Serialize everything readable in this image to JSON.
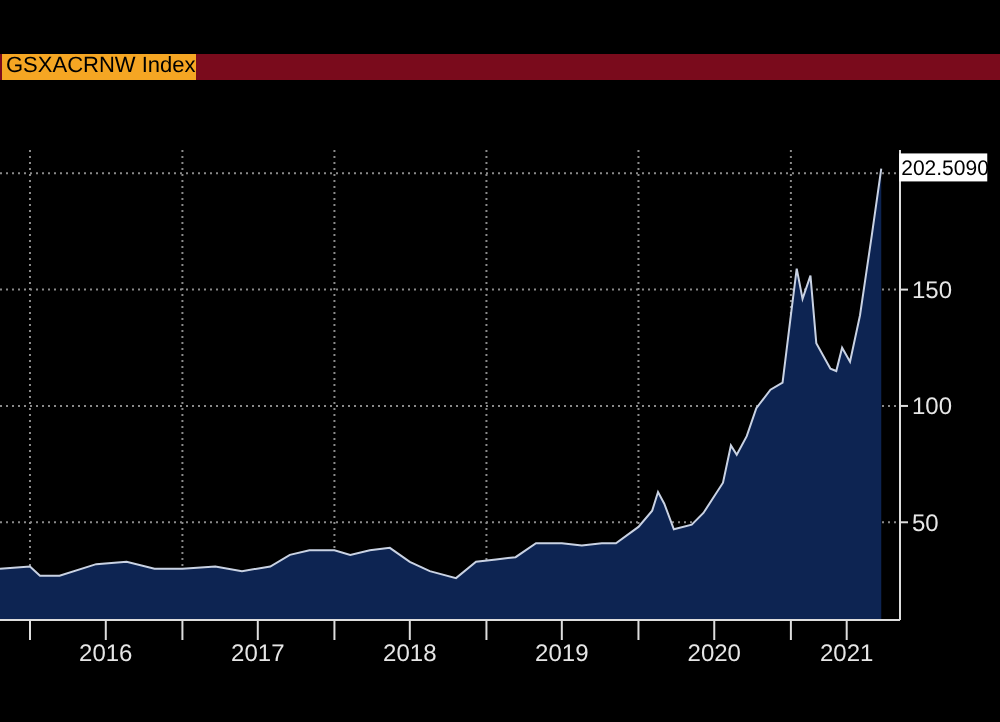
{
  "chart_data": {
    "type": "area",
    "title": "GSXACRNW Index",
    "x": [
      "2015-10-21",
      "2016-01-01",
      "2016-01-25",
      "2016-03-12",
      "2016-06-08",
      "2016-08-20",
      "2016-10-26",
      "2017-01-01",
      "2017-03-21",
      "2017-05-24",
      "2017-07-31",
      "2017-09-16",
      "2017-11-02",
      "2018-01-01",
      "2018-02-08",
      "2018-03-27",
      "2018-05-14",
      "2018-07-01",
      "2018-08-18",
      "2018-10-20",
      "2018-12-07",
      "2019-01-24",
      "2019-03-12",
      "2019-04-30",
      "2019-07-01",
      "2019-08-18",
      "2019-10-05",
      "2019-11-08",
      "2020-01-01",
      "2020-02-03",
      "2020-02-17",
      "2020-03-03",
      "2020-03-26",
      "2020-05-08",
      "2020-06-05",
      "2020-07-22",
      "2020-08-10",
      "2020-08-24",
      "2020-09-17",
      "2020-10-10",
      "2020-11-13",
      "2020-12-12",
      "2021-01-01",
      "2021-01-15",
      "2021-01-29",
      "2021-02-17",
      "2021-03-03",
      "2021-04-06",
      "2021-04-20",
      "2021-05-04",
      "2021-05-23",
      "2021-06-16",
      "2021-06-30",
      "2021-07-14",
      "2021-08-06"
    ],
    "series": [
      {
        "color": "#0d2452",
        "values": [
          30,
          31,
          27,
          27,
          32,
          33,
          30,
          30,
          31,
          29,
          31,
          36,
          38,
          38,
          36,
          38,
          39,
          33,
          29,
          26,
          33,
          34,
          35,
          41,
          41,
          40,
          41,
          41,
          48,
          55,
          63,
          58,
          47,
          49,
          54,
          67,
          83,
          79,
          87,
          99,
          107,
          110,
          139,
          159,
          146,
          156,
          127,
          116,
          115,
          125,
          119,
          139,
          156,
          173,
          202
        ]
      }
    ],
    "xlim": [
      "2015-10-21",
      "2021-09-20"
    ],
    "xticks": [
      {
        "value": "2016-01-01",
        "label": null
      },
      {
        "value": "2016-07-01",
        "label": "2016"
      },
      {
        "value": "2017-01-01",
        "label": null
      },
      {
        "value": "2017-07-01",
        "label": "2017"
      },
      {
        "value": "2018-01-01",
        "label": null
      },
      {
        "value": "2018-07-01",
        "label": "2018"
      },
      {
        "value": "2019-01-01",
        "label": null
      },
      {
        "value": "2019-07-01",
        "label": "2019"
      },
      {
        "value": "2020-01-01",
        "label": null
      },
      {
        "value": "2020-07-01",
        "label": "2020"
      },
      {
        "value": "2021-01-01",
        "label": null
      },
      {
        "value": "2021-05-15",
        "label": "2021"
      }
    ],
    "ylim": [
      8,
      210
    ],
    "yticks": [
      50,
      100,
      150,
      {
        "value": 200,
        "label": null
      }
    ],
    "grid": true,
    "annotations": [
      {
        "text": "202.5090",
        "x": "2021-08-06",
        "y": 202.509
      }
    ]
  }
}
